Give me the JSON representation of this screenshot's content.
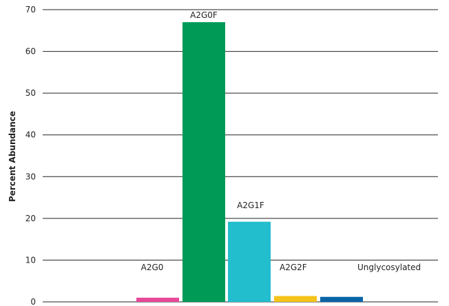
{
  "chart_data": {
    "type": "bar",
    "title": "",
    "xlabel": "",
    "ylabel": "Percent Abundance",
    "ylim": [
      0,
      70
    ],
    "yticks": [
      0,
      10,
      20,
      30,
      40,
      50,
      60,
      70
    ],
    "grid": true,
    "categories": [
      "A2G0",
      "A2G0F",
      "A2G1F",
      "A2G2F",
      "Unglycosylated"
    ],
    "values": [
      1.0,
      67.0,
      19.2,
      1.4,
      1.2
    ],
    "colors": [
      "#e8489a",
      "#009a57",
      "#22bece",
      "#f6c31a",
      "#0a64a8"
    ]
  }
}
